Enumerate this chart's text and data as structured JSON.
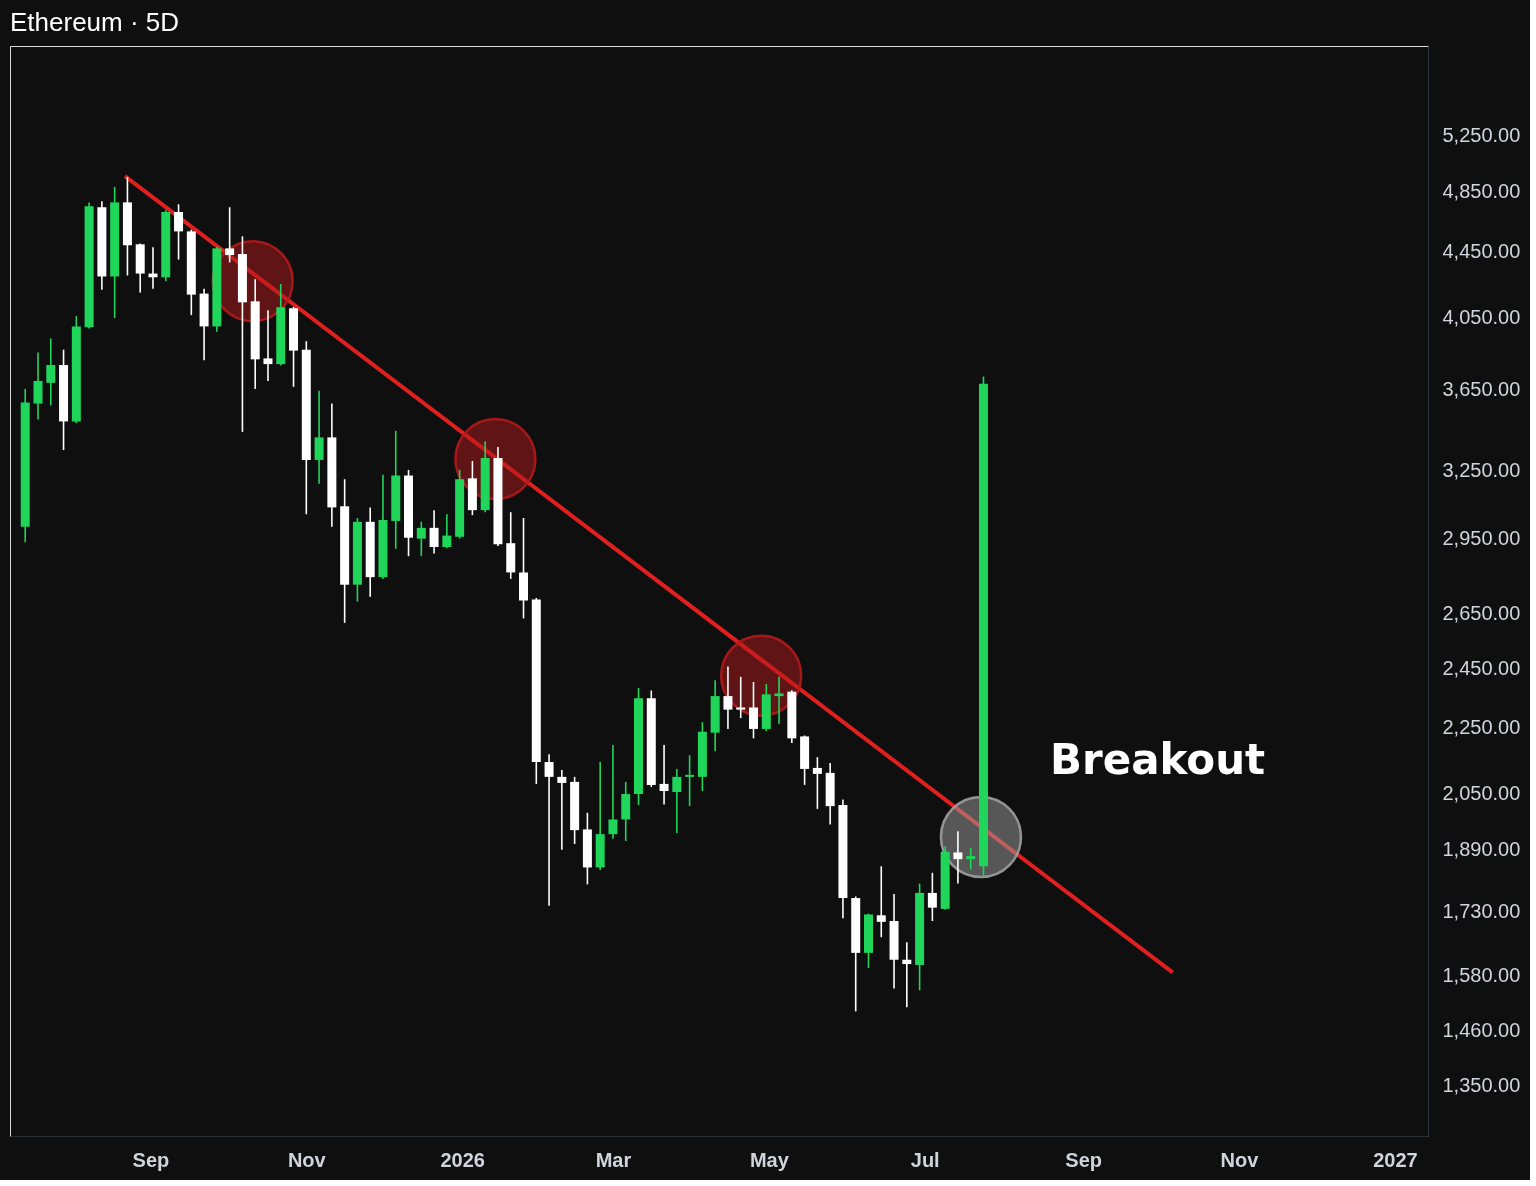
{
  "chart_data": {
    "type": "candlestick",
    "title": "Ethereum · 5D",
    "log": true,
    "grid": false,
    "ylim": [
      1255,
      5970
    ],
    "yticks": [
      {
        "value": 1350,
        "label": "1,350.00"
      },
      {
        "value": 1460,
        "label": "1,460.00"
      },
      {
        "value": 1580,
        "label": "1,580.00"
      },
      {
        "value": 1730,
        "label": "1,730.00"
      },
      {
        "value": 1890,
        "label": "1,890.00"
      },
      {
        "value": 2050,
        "label": "2,050.00"
      },
      {
        "value": 2250,
        "label": "2,250.00"
      },
      {
        "value": 2450,
        "label": "2,450.00"
      },
      {
        "value": 2650,
        "label": "2,650.00"
      },
      {
        "value": 2950,
        "label": "2,950.00"
      },
      {
        "value": 3250,
        "label": "3,250.00"
      },
      {
        "value": 3650,
        "label": "3,650.00"
      },
      {
        "value": 4050,
        "label": "4,050.00"
      },
      {
        "value": 4450,
        "label": "4,450.00"
      },
      {
        "value": 4850,
        "label": "4,850.00"
      },
      {
        "value": 5250,
        "label": "5,250.00"
      }
    ],
    "xlim": [
      "2025-07-10",
      "2027-01-12"
    ],
    "xticks": [
      {
        "value": "2025-09-01",
        "label": "Sep"
      },
      {
        "value": "2025-11-01",
        "label": "Nov"
      },
      {
        "value": "2026-01-01",
        "label": "2026"
      },
      {
        "value": "2026-03-01",
        "label": "Mar"
      },
      {
        "value": "2026-05-01",
        "label": "May"
      },
      {
        "value": "2026-07-01",
        "label": "Jul"
      },
      {
        "value": "2026-09-01",
        "label": "Sep"
      },
      {
        "value": "2026-11-01",
        "label": "Nov"
      },
      {
        "value": "2027-01-01",
        "label": "2027"
      }
    ],
    "x": [
      "2025-07-14",
      "2025-07-19",
      "2025-07-24",
      "2025-07-29",
      "2025-08-03",
      "2025-08-08",
      "2025-08-13",
      "2025-08-18",
      "2025-08-23",
      "2025-08-28",
      "2025-09-02",
      "2025-09-07",
      "2025-09-12",
      "2025-09-17",
      "2025-09-22",
      "2025-09-27",
      "2025-10-02",
      "2025-10-07",
      "2025-10-12",
      "2025-10-17",
      "2025-10-22",
      "2025-10-27",
      "2025-11-01",
      "2025-11-06",
      "2025-11-11",
      "2025-11-16",
      "2025-11-21",
      "2025-11-26",
      "2025-12-01",
      "2025-12-06",
      "2025-12-11",
      "2025-12-16",
      "2025-12-21",
      "2025-12-26",
      "2025-12-31",
      "2026-01-05",
      "2026-01-10",
      "2026-01-15",
      "2026-01-20",
      "2026-01-25",
      "2026-01-30",
      "2026-02-04",
      "2026-02-09",
      "2026-02-14",
      "2026-02-19",
      "2026-02-24",
      "2026-03-01",
      "2026-03-06",
      "2026-03-11",
      "2026-03-16",
      "2026-03-21",
      "2026-03-26",
      "2026-03-31",
      "2026-04-05",
      "2026-04-10",
      "2026-04-15",
      "2026-04-20",
      "2026-04-25",
      "2026-04-30",
      "2026-05-05",
      "2026-05-10",
      "2026-05-15",
      "2026-05-20",
      "2026-05-25",
      "2026-05-30",
      "2026-06-04",
      "2026-06-09",
      "2026-06-14",
      "2026-06-19",
      "2026-06-24",
      "2026-06-29",
      "2026-07-04",
      "2026-07-09",
      "2026-07-14",
      "2026-07-19",
      "2026-07-24"
    ],
    "ohlc": [
      [
        3001,
        3655,
        2935,
        3584
      ],
      [
        3579,
        3850,
        3499,
        3697
      ],
      [
        3687,
        3929,
        3570,
        3782
      ],
      [
        3782,
        3866,
        3349,
        3489
      ],
      [
        3489,
        4056,
        3480,
        3997
      ],
      [
        3992,
        4773,
        3985,
        4747
      ],
      [
        4740,
        4780,
        4212,
        4293
      ],
      [
        4293,
        4880,
        4045,
        4773
      ],
      [
        4773,
        4950,
        4299,
        4489
      ],
      [
        4495,
        4500,
        4195,
        4311
      ],
      [
        4311,
        4476,
        4218,
        4288
      ],
      [
        4288,
        4720,
        4264,
        4708
      ],
      [
        4708,
        4760,
        4398,
        4579
      ],
      [
        4579,
        4590,
        4062,
        4183
      ],
      [
        4189,
        4218,
        3808,
        3997
      ],
      [
        3997,
        4480,
        3966,
        4469
      ],
      [
        4469,
        4740,
        4380,
        4427
      ],
      [
        4433,
        4547,
        3437,
        4137
      ],
      [
        4143,
        4276,
        3655,
        3813
      ],
      [
        3818,
        4091,
        3697,
        3787
      ],
      [
        3787,
        4247,
        3780,
        4108
      ],
      [
        4102,
        4110,
        3666,
        3861
      ],
      [
        3866,
        3913,
        3055,
        3302
      ],
      [
        3302,
        3645,
        3191,
        3410
      ],
      [
        3410,
        3579,
        3001,
        3085
      ],
      [
        3090,
        3212,
        2615,
        2762
      ],
      [
        2762,
        3039,
        2696,
        3022
      ],
      [
        3022,
        3085,
        2715,
        2792
      ],
      [
        2792,
        3233,
        2785,
        3030
      ],
      [
        3026,
        3442,
        2908,
        3229
      ],
      [
        3229,
        3255,
        2877,
        2954
      ],
      [
        2950,
        3022,
        2877,
        2996
      ],
      [
        2996,
        3073,
        2888,
        2915
      ],
      [
        2915,
        3055,
        2910,
        2963
      ],
      [
        2958,
        3255,
        2950,
        3212
      ],
      [
        3216,
        3297,
        3051,
        3073
      ],
      [
        3073,
        3391,
        3064,
        3311
      ],
      [
        3311,
        3363,
        2919,
        2927
      ],
      [
        2931,
        3064,
        2785,
        2811
      ],
      [
        2811,
        3039,
        2632,
        2700
      ],
      [
        2704,
        2710,
        2077,
        2143
      ],
      [
        2143,
        2167,
        1745,
        2098
      ],
      [
        2098,
        2119,
        1890,
        2080
      ],
      [
        2083,
        2098,
        1906,
        1944
      ],
      [
        1946,
        1993,
        1799,
        1843
      ],
      [
        1843,
        2143,
        1836,
        1933
      ],
      [
        1933,
        2196,
        1920,
        1974
      ],
      [
        1974,
        2083,
        1914,
        2047
      ],
      [
        2047,
        2383,
        2015,
        2348
      ],
      [
        2348,
        2374,
        2068,
        2074
      ],
      [
        2077,
        2196,
        2017,
        2056
      ],
      [
        2053,
        2122,
        1936,
        2098
      ],
      [
        2098,
        2164,
        2012,
        2104
      ],
      [
        2098,
        2269,
        2056,
        2238
      ],
      [
        2235,
        2409,
        2176,
        2355
      ],
      [
        2355,
        2457,
        2247,
        2310
      ],
      [
        2317,
        2421,
        2282,
        2310
      ],
      [
        2317,
        2403,
        2217,
        2247
      ],
      [
        2247,
        2396,
        2240,
        2361
      ],
      [
        2355,
        2421,
        2263,
        2364
      ],
      [
        2370,
        2375,
        2202,
        2217
      ],
      [
        2223,
        2226,
        2074,
        2122
      ],
      [
        2125,
        2158,
        2004,
        2107
      ],
      [
        2110,
        2140,
        1960,
        2012
      ],
      [
        2015,
        2031,
        1714,
        1764
      ],
      [
        1764,
        1768,
        1500,
        1631
      ],
      [
        1631,
        1725,
        1596,
        1723
      ],
      [
        1721,
        1846,
        1668,
        1705
      ],
      [
        1707,
        1774,
        1550,
        1615
      ],
      [
        1615,
        1656,
        1509,
        1605
      ],
      [
        1603,
        1801,
        1546,
        1777
      ],
      [
        1777,
        1829,
        1707,
        1740
      ],
      [
        1737,
        1900,
        1735,
        1885
      ],
      [
        1883,
        1941,
        1801,
        1865
      ],
      [
        1865,
        1895,
        1838,
        1873
      ],
      [
        1846,
        3720,
        1821,
        3682
      ]
    ],
    "colors": [
      "#20d65a",
      "#20d65a",
      "#20d65a",
      "#ffffff",
      "#20d65a",
      "#20d65a",
      "#ffffff",
      "#20d65a",
      "#ffffff",
      "#ffffff",
      "#ffffff",
      "#20d65a",
      "#ffffff",
      "#ffffff",
      "#ffffff",
      "#20d65a",
      "#ffffff",
      "#ffffff",
      "#ffffff",
      "#ffffff",
      "#20d65a",
      "#ffffff",
      "#ffffff",
      "#20d65a",
      "#ffffff",
      "#ffffff",
      "#20d65a",
      "#ffffff",
      "#20d65a",
      "#20d65a",
      "#ffffff",
      "#20d65a",
      "#ffffff",
      "#20d65a",
      "#20d65a",
      "#ffffff",
      "#20d65a",
      "#ffffff",
      "#ffffff",
      "#ffffff",
      "#ffffff",
      "#ffffff",
      "#ffffff",
      "#ffffff",
      "#ffffff",
      "#20d65a",
      "#20d65a",
      "#20d65a",
      "#20d65a",
      "#ffffff",
      "#ffffff",
      "#20d65a",
      "#20d65a",
      "#20d65a",
      "#20d65a",
      "#ffffff",
      "#ffffff",
      "#ffffff",
      "#20d65a",
      "#20d65a",
      "#ffffff",
      "#ffffff",
      "#ffffff",
      "#ffffff",
      "#ffffff",
      "#ffffff",
      "#20d65a",
      "#ffffff",
      "#ffffff",
      "#ffffff",
      "#20d65a",
      "#ffffff",
      "#20d65a",
      "#ffffff",
      "#20d65a",
      "#20d65a"
    ],
    "series": [
      {
        "type": "line",
        "color": "#e01f1f",
        "x": [
          "2025-08-22",
          "2026-10-06"
        ],
        "values": [
          4956,
          1586
        ]
      },
      {
        "type": "scatter",
        "marker": "circle",
        "x": [
          "2025-10-11",
          "2026-01-14",
          "2026-04-28",
          "2026-07-23"
        ],
        "values": [
          4264,
          3306,
          2425,
          1925
        ],
        "colors": [
          "#b3191b",
          "#b3191b",
          "#b3191b",
          "#a0a0a0"
        ]
      }
    ],
    "annotations": [
      "Breakout"
    ]
  }
}
